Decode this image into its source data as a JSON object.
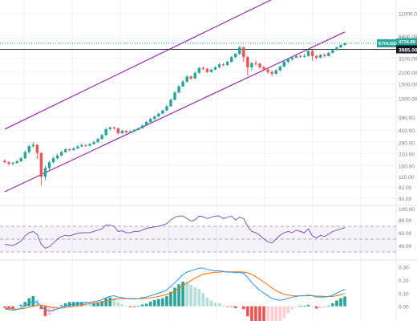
{
  "chart_data": [
    {
      "type": "candlestick",
      "panel": "price",
      "symbol_badge": "ETHUSD",
      "last_price_badge": "4724.89",
      "last_price_subtext": "8d 18h",
      "hline_label": "3985.00",
      "scale": "log",
      "ylim": [
        50,
        16000
      ],
      "y_ticks": [
        "16000.00",
        "11000.00",
        "5800.00",
        "5400.00",
        "3100.00",
        "2100.00",
        "1500.00",
        "1000.00",
        "590.00",
        "410.00",
        "290.00",
        "210.00",
        "150.00",
        "110.00",
        "82.00",
        "60.00"
      ],
      "hline_value": 3985,
      "last_price_value": 4724.89,
      "candles": [
        [
          172,
          165,
          180,
          160
        ],
        [
          165,
          158,
          170,
          150
        ],
        [
          158,
          162,
          168,
          152
        ],
        [
          162,
          170,
          176,
          158
        ],
        [
          170,
          185,
          192,
          165
        ],
        [
          185,
          220,
          230,
          180
        ],
        [
          220,
          260,
          270,
          212
        ],
        [
          260,
          270,
          290,
          250
        ],
        [
          270,
          215,
          275,
          180
        ],
        [
          215,
          110,
          218,
          85
        ],
        [
          110,
          140,
          150,
          100
        ],
        [
          140,
          165,
          172,
          132
        ],
        [
          165,
          185,
          192,
          160
        ],
        [
          185,
          200,
          210,
          178
        ],
        [
          200,
          220,
          228,
          195
        ],
        [
          220,
          238,
          246,
          215
        ],
        [
          238,
          232,
          245,
          225
        ],
        [
          232,
          244,
          252,
          228
        ],
        [
          244,
          258,
          268,
          240
        ],
        [
          258,
          268,
          280,
          252
        ],
        [
          268,
          262,
          275,
          255
        ],
        [
          262,
          276,
          284,
          258
        ],
        [
          276,
          292,
          302,
          270
        ],
        [
          292,
          318,
          328,
          285
        ],
        [
          318,
          355,
          370,
          312
        ],
        [
          355,
          420,
          440,
          348
        ],
        [
          420,
          440,
          455,
          405
        ],
        [
          440,
          430,
          452,
          412
        ],
        [
          430,
          375,
          435,
          360
        ],
        [
          375,
          400,
          410,
          365
        ],
        [
          400,
          385,
          408,
          372
        ],
        [
          385,
          395,
          404,
          378
        ],
        [
          395,
          412,
          420,
          388
        ],
        [
          412,
          430,
          440,
          405
        ],
        [
          430,
          465,
          478,
          425
        ],
        [
          465,
          515,
          530,
          458
        ],
        [
          515,
          560,
          575,
          505
        ],
        [
          560,
          600,
          615,
          550
        ],
        [
          600,
          650,
          668,
          592
        ],
        [
          650,
          710,
          730,
          640
        ],
        [
          710,
          800,
          830,
          700
        ],
        [
          800,
          960,
          990,
          790
        ],
        [
          960,
          1180,
          1230,
          940
        ],
        [
          1180,
          1400,
          1460,
          1150
        ],
        [
          1400,
          1600,
          1680,
          1380
        ],
        [
          1600,
          1850,
          1920,
          1560
        ],
        [
          1850,
          1750,
          1900,
          1690
        ],
        [
          1750,
          2050,
          2120,
          1720
        ],
        [
          2050,
          2350,
          2420,
          2000
        ],
        [
          2350,
          2300,
          2450,
          2200
        ],
        [
          2300,
          2100,
          2350,
          2050
        ],
        [
          2100,
          2250,
          2300,
          2060
        ],
        [
          2250,
          2400,
          2480,
          2200
        ],
        [
          2400,
          2600,
          2700,
          2350
        ],
        [
          2600,
          2550,
          2680,
          2480
        ],
        [
          2550,
          2800,
          2880,
          2500
        ],
        [
          2800,
          3200,
          3300,
          2750
        ],
        [
          3200,
          3500,
          3600,
          3100
        ],
        [
          3500,
          4200,
          4400,
          3400
        ],
        [
          4200,
          3200,
          4300,
          2800
        ],
        [
          3200,
          2400,
          3300,
          1900
        ],
        [
          2400,
          2700,
          2800,
          2200
        ],
        [
          2700,
          2650,
          2900,
          2500
        ],
        [
          2650,
          2400,
          2750,
          2300
        ],
        [
          2400,
          2250,
          2500,
          2150
        ],
        [
          2250,
          2100,
          2350,
          2000
        ],
        [
          2100,
          2000,
          2200,
          1850
        ],
        [
          2000,
          2200,
          2280,
          1950
        ],
        [
          2200,
          2450,
          2520,
          2150
        ],
        [
          2450,
          2800,
          2900,
          2400
        ],
        [
          2800,
          3000,
          3100,
          2700
        ],
        [
          3000,
          3150,
          3250,
          2900
        ],
        [
          3150,
          3300,
          3400,
          3100
        ],
        [
          3300,
          3250,
          3400,
          3150
        ],
        [
          3250,
          3300,
          3500,
          3150
        ],
        [
          3300,
          3800,
          3900,
          3250
        ],
        [
          3800,
          3300,
          3950,
          2900
        ],
        [
          3300,
          3150,
          3400,
          3000
        ],
        [
          3150,
          3400,
          3500,
          3100
        ],
        [
          3400,
          3300,
          3550,
          3200
        ],
        [
          3300,
          3600,
          3700,
          3250
        ],
        [
          3600,
          3900,
          4000,
          3550
        ],
        [
          3900,
          4200,
          4300,
          3850
        ],
        [
          4200,
          4500,
          4600,
          4150
        ],
        [
          4500,
          4724,
          4800,
          4450
        ]
      ],
      "channel_upper": [
        [
          0,
          420
        ],
        [
          84,
          44000
        ]
      ],
      "channel_lower": [
        [
          0,
          72
        ],
        [
          84,
          6500
        ]
      ]
    },
    {
      "type": "line",
      "panel": "rsi",
      "ylim": [
        20,
        100
      ],
      "y_ticks": [
        "100.00",
        "80.00",
        "60.00",
        "40.00"
      ],
      "band_upper": 70,
      "band_lower": 30,
      "mid_level": 50,
      "values": [
        42,
        41,
        40,
        43,
        47,
        55,
        60,
        62,
        57,
        42,
        36,
        38,
        44,
        50,
        54,
        56,
        55,
        57,
        59,
        60,
        60,
        60,
        62,
        64,
        66,
        72,
        72,
        70,
        62,
        63,
        60,
        60,
        62,
        62,
        64,
        67,
        68,
        69,
        70,
        72,
        74,
        80,
        84,
        86,
        86,
        82,
        78,
        80,
        86,
        85,
        82,
        84,
        86,
        86,
        82,
        84,
        86,
        80,
        84,
        82,
        70,
        62,
        60,
        56,
        50,
        46,
        44,
        50,
        56,
        60,
        62,
        60,
        64,
        62,
        60,
        66,
        55,
        52,
        56,
        54,
        58,
        62,
        64,
        66,
        68
      ]
    },
    {
      "type": "macd",
      "panel": "macd",
      "ylim": [
        -0.1,
        0.34
      ],
      "y_ticks": [
        "0.30",
        "0.20",
        "0.10",
        "0.00"
      ],
      "macd": [
        -0.02,
        -0.025,
        -0.03,
        -0.025,
        -0.015,
        0.0,
        0.02,
        0.035,
        0.03,
        0.0,
        -0.03,
        -0.035,
        -0.03,
        -0.02,
        -0.01,
        0.0,
        0.01,
        0.015,
        0.02,
        0.025,
        0.03,
        0.03,
        0.035,
        0.04,
        0.05,
        0.065,
        0.075,
        0.08,
        0.07,
        0.065,
        0.06,
        0.055,
        0.055,
        0.06,
        0.065,
        0.07,
        0.08,
        0.09,
        0.1,
        0.11,
        0.125,
        0.15,
        0.18,
        0.21,
        0.24,
        0.26,
        0.27,
        0.28,
        0.29,
        0.29,
        0.28,
        0.275,
        0.27,
        0.27,
        0.265,
        0.26,
        0.26,
        0.255,
        0.26,
        0.25,
        0.22,
        0.18,
        0.15,
        0.12,
        0.1,
        0.08,
        0.06,
        0.05,
        0.045,
        0.05,
        0.06,
        0.07,
        0.075,
        0.08,
        0.08,
        0.085,
        0.08,
        0.07,
        0.07,
        0.07,
        0.075,
        0.085,
        0.1,
        0.115,
        0.13
      ],
      "signal": [
        -0.015,
        -0.018,
        -0.02,
        -0.022,
        -0.02,
        -0.015,
        -0.008,
        0.0,
        0.008,
        0.01,
        0.004,
        -0.004,
        -0.01,
        -0.014,
        -0.014,
        -0.01,
        -0.005,
        0.0,
        0.005,
        0.01,
        0.015,
        0.02,
        0.024,
        0.028,
        0.032,
        0.038,
        0.045,
        0.052,
        0.056,
        0.058,
        0.059,
        0.058,
        0.058,
        0.058,
        0.059,
        0.061,
        0.064,
        0.069,
        0.075,
        0.082,
        0.09,
        0.1,
        0.116,
        0.134,
        0.155,
        0.176,
        0.196,
        0.214,
        0.23,
        0.245,
        0.25,
        0.255,
        0.258,
        0.26,
        0.262,
        0.262,
        0.262,
        0.262,
        0.262,
        0.26,
        0.255,
        0.242,
        0.225,
        0.205,
        0.185,
        0.162,
        0.14,
        0.12,
        0.104,
        0.092,
        0.085,
        0.081,
        0.079,
        0.079,
        0.079,
        0.08,
        0.08,
        0.078,
        0.077,
        0.075,
        0.074,
        0.075,
        0.08,
        0.087,
        0.096
      ]
    }
  ]
}
